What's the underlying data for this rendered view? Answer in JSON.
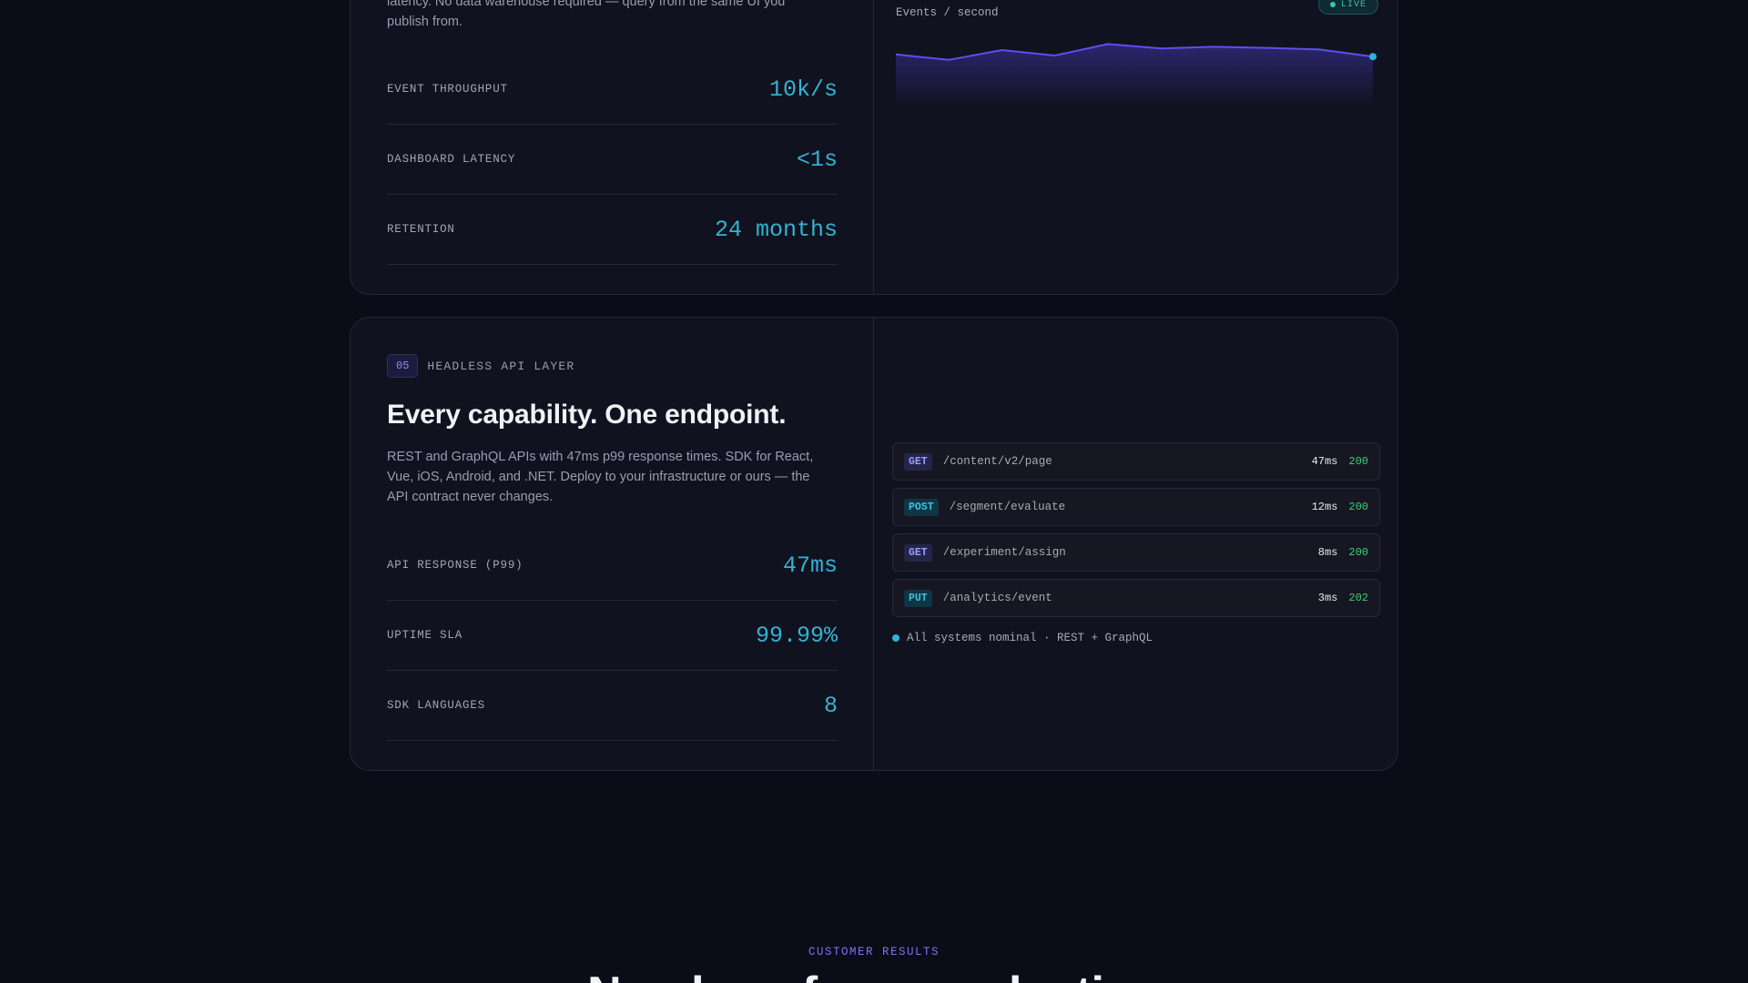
{
  "card1": {
    "desc": "latency. No data warehouse required — query from the same UI you publish from.",
    "chart_caption": "Events / second",
    "live_label": "LIVE",
    "stats": [
      {
        "label": "EVENT THROUGHPUT",
        "value": "10k/s"
      },
      {
        "label": "DASHBOARD LATENCY",
        "value": "<1s"
      },
      {
        "label": "RETENTION",
        "value": "24 months"
      }
    ],
    "chart_data": {
      "type": "area",
      "title": "",
      "xlabel": "",
      "ylabel": "",
      "values": [
        0.72,
        0.62,
        0.8,
        0.7,
        0.91,
        0.83,
        0.86,
        0.84,
        0.81,
        0.68
      ],
      "colors": {
        "line": "#5b4ff0",
        "dot": "#2fb3d6"
      }
    }
  },
  "card2": {
    "num": "05",
    "eyebrow": "HEADLESS API LAYER",
    "title": "Every capability. One endpoint.",
    "desc": "REST and GraphQL APIs with 47ms p99 response times. SDK for React, Vue, iOS, Android, and .NET. Deploy to your infrastructure or ours — the API contract never changes.",
    "stats": [
      {
        "label": "API RESPONSE (P99)",
        "value": "47ms"
      },
      {
        "label": "UPTIME SLA",
        "value": "99.99%"
      },
      {
        "label": "SDK LANGUAGES",
        "value": "8"
      }
    ],
    "requests": [
      {
        "method": "GET",
        "path": "/content/v2/page",
        "ms": "47ms",
        "code": "200"
      },
      {
        "method": "POST",
        "path": "/segment/evaluate",
        "ms": "12ms",
        "code": "200"
      },
      {
        "method": "GET",
        "path": "/experiment/assign",
        "ms": "8ms",
        "code": "200"
      },
      {
        "method": "PUT",
        "path": "/analytics/event",
        "ms": "3ms",
        "code": "202"
      }
    ],
    "status": "All systems nominal · REST + GraphQL"
  },
  "section": {
    "eyebrow": "CUSTOMER RESULTS",
    "title": "Numbers from production"
  },
  "colors": {
    "accent": "#32b3d3",
    "brand": "#6c63f5",
    "ok": "#3bd07a",
    "bg": "#0b0c17"
  }
}
